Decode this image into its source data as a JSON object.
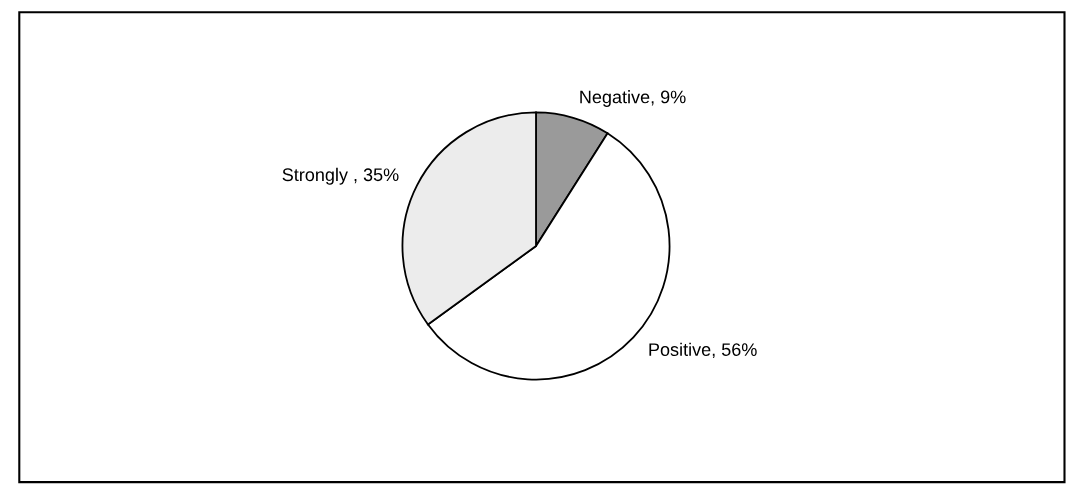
{
  "chart_data": {
    "type": "pie",
    "categories": [
      "Negative, 9%",
      "Positive, 56%",
      "Strongly , 35%"
    ],
    "values": [
      9,
      56,
      35
    ],
    "colors": [
      "#9a9a9a",
      "#ffffff",
      "#ececec"
    ]
  }
}
